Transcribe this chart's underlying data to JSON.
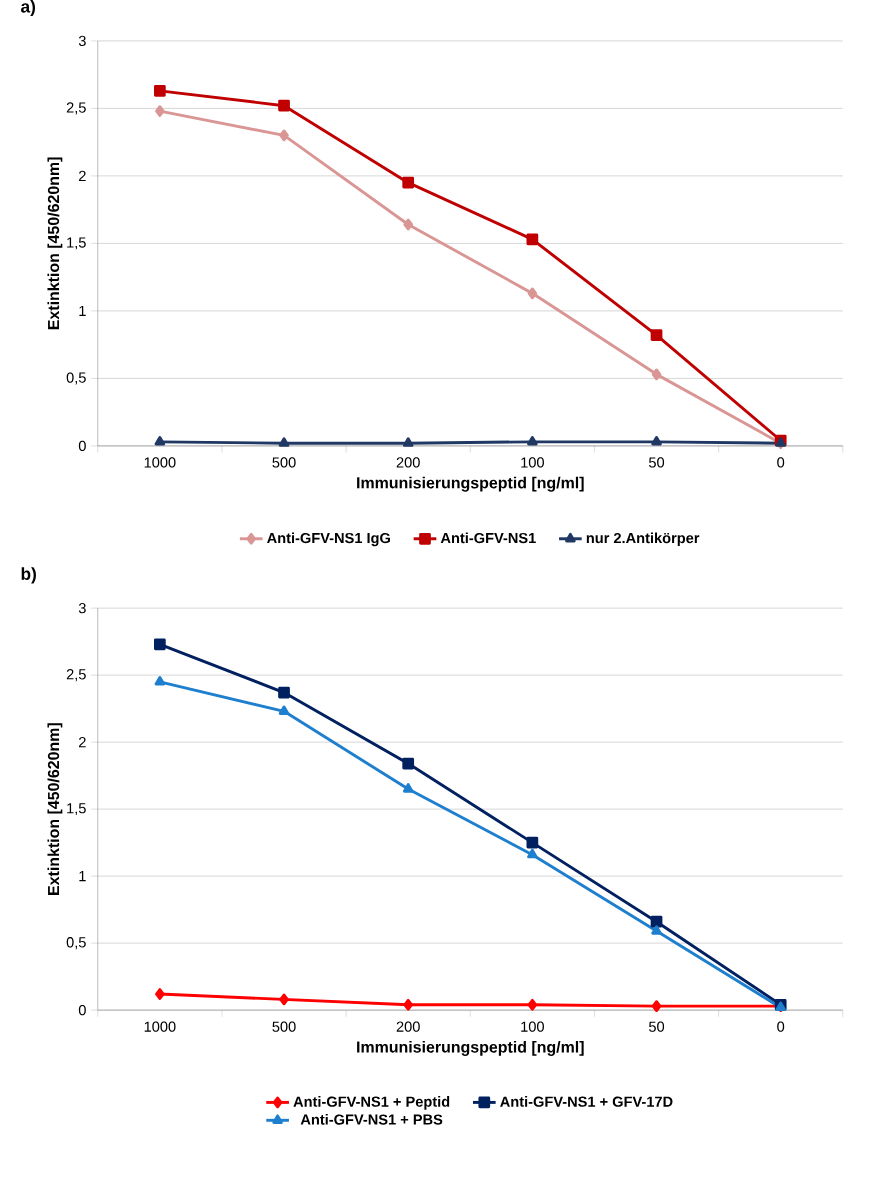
{
  "chart_data": [
    {
      "type": "line",
      "title": "a)",
      "xlabel": "Immunisierungspeptid [ng/ml]",
      "ylabel": "Extinktion [450/620nm]",
      "categories": [
        "1000",
        "500",
        "200",
        "100",
        "50",
        "0"
      ],
      "ylim": [
        0,
        3
      ],
      "yticks": [
        0,
        {
          "value": 0.5,
          "label": "0,5"
        },
        1,
        {
          "value": 1.5,
          "label": "1,5"
        },
        2,
        {
          "value": 2.5,
          "label": "2,5"
        },
        3
      ],
      "grid": "y",
      "legend": "bottom",
      "line_style": "solid",
      "series": [
        {
          "name": "Anti-GFV-NS1 IgG",
          "color": "#d99694",
          "marker": "diamond",
          "values": [
            2.48,
            2.3,
            1.64,
            1.13,
            0.53,
            0.02
          ]
        },
        {
          "name": "Anti-GFV-NS1",
          "color": "#c00000",
          "marker": "square",
          "values": [
            2.63,
            2.52,
            1.95,
            1.53,
            0.82,
            0.04
          ]
        },
        {
          "name": "nur 2.Antikörper",
          "color": "#1f3864",
          "marker": "triangle",
          "values": [
            0.03,
            0.02,
            0.02,
            0.03,
            0.03,
            0.02
          ]
        }
      ]
    },
    {
      "type": "line",
      "title": "b)",
      "xlabel": "Immunisierungspeptid [ng/ml]",
      "ylabel": "Extinktion [450/620nm]",
      "categories": [
        "1000",
        "500",
        "200",
        "100",
        "50",
        "0"
      ],
      "ylim": [
        0,
        3
      ],
      "yticks": [
        0,
        {
          "value": 0.5,
          "label": "0,5"
        },
        1,
        {
          "value": 1.5,
          "label": "1,5"
        },
        2,
        {
          "value": 2.5,
          "label": "2,5"
        },
        3
      ],
      "grid": "y",
      "legend": "bottom",
      "line_style": "solid",
      "series": [
        {
          "name": "Anti-GFV-NS1 + Peptid",
          "color": "#ff0000",
          "marker": "diamond",
          "values": [
            0.12,
            0.08,
            0.04,
            0.04,
            0.03,
            0.03
          ]
        },
        {
          "name": "Anti-GFV-NS1 + GFV-17D",
          "color": "#002060",
          "marker": "square",
          "values": [
            2.73,
            2.37,
            1.84,
            1.25,
            0.66,
            0.04
          ]
        },
        {
          "name": "Anti-GFV-NS1 + PBS",
          "color": "#1f7fcf",
          "marker": "triangle",
          "values": [
            2.45,
            2.23,
            1.65,
            1.16,
            0.59,
            0.02
          ]
        }
      ]
    }
  ]
}
